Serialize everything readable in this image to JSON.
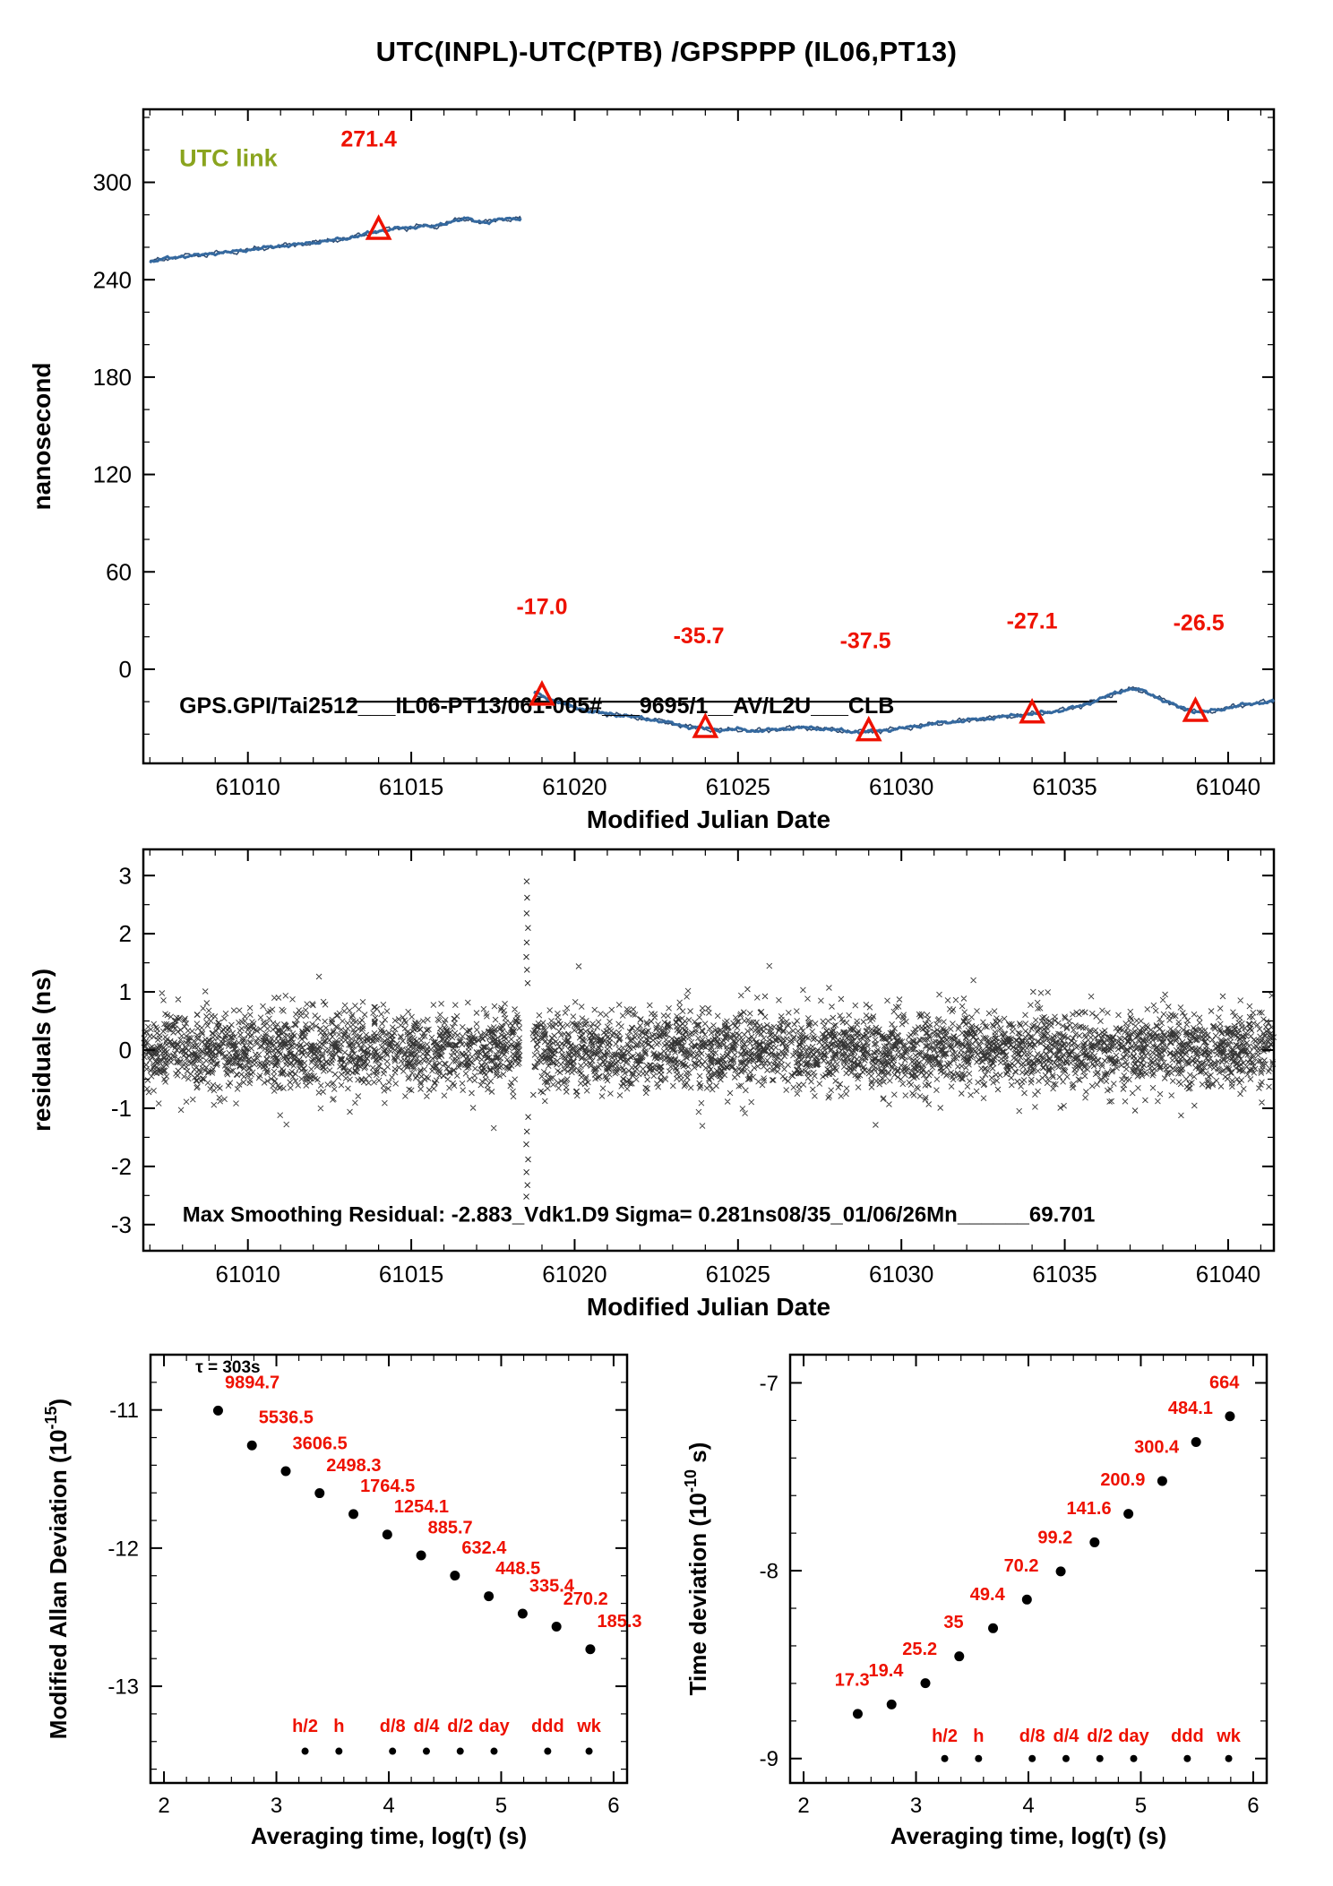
{
  "title": "UTC(INPL)-UTC(PTB)  /GPSPPP  (IL06,PT13)",
  "colors": {
    "trace_blue": "#35699f",
    "trace_blue_dark": "#16355e",
    "accent_red": "#ee1100",
    "utc_link_green": "#8aa41e",
    "ink": "#000000"
  },
  "chart_data": [
    {
      "id": "utc_link_time_series",
      "type": "line",
      "xlabel": "Modified Julian Date",
      "ylabel": "nanosecond",
      "xlim": [
        61006.8,
        61041.4
      ],
      "ylim": [
        -58,
        345
      ],
      "xticks": [
        61010,
        61015,
        61020,
        61025,
        61030,
        61035,
        61040
      ],
      "yticks": [
        0,
        60,
        120,
        180,
        240,
        300
      ],
      "corner_label": "UTC link",
      "corner_label_pos": [
        61007.9,
        310
      ],
      "inline_label": "GPS.GPI/Tai2512___IL06-PT13/061-005#___9695/1__AV/L2U___CLB",
      "inline_label_pos": [
        61007.9,
        -27
      ],
      "baseline_segment": {
        "y": -20,
        "x1": 61013.0,
        "x2": 61036.6
      },
      "series": [
        {
          "name": "pre-step",
          "points": [
            [
              61007,
              251
            ],
            [
              61007.5,
              253
            ],
            [
              61008,
              254.5
            ],
            [
              61008.5,
              255
            ],
            [
              61009,
              256.5
            ],
            [
              61009.5,
              257
            ],
            [
              61010,
              258.5
            ],
            [
              61010.5,
              259.5
            ],
            [
              61011,
              261
            ],
            [
              61011.5,
              261.5
            ],
            [
              61012,
              263
            ],
            [
              61012.5,
              264
            ],
            [
              61013,
              265.5
            ],
            [
              61013.5,
              267.5
            ],
            [
              61014,
              270
            ],
            [
              61014.5,
              271.5
            ],
            [
              61015,
              272
            ],
            [
              61015.3,
              273.5
            ],
            [
              61015.7,
              272.5
            ],
            [
              61016,
              274.5
            ],
            [
              61016.3,
              276.5
            ],
            [
              61016.7,
              277.5
            ],
            [
              61017,
              276
            ],
            [
              61017.3,
              275.5
            ],
            [
              61017.7,
              277
            ],
            [
              61018,
              277.5
            ],
            [
              61018.35,
              278
            ]
          ]
        },
        {
          "name": "post-step",
          "points": [
            [
              61018.75,
              -14
            ],
            [
              61019,
              -16.5
            ],
            [
              61019.3,
              -19
            ],
            [
              61019.7,
              -21.5
            ],
            [
              61020,
              -23.5
            ],
            [
              61020.5,
              -26
            ],
            [
              61021,
              -27.5
            ],
            [
              61021.5,
              -28.5
            ],
            [
              61022,
              -30
            ],
            [
              61022.5,
              -31.5
            ],
            [
              61023,
              -33.5
            ],
            [
              61023.5,
              -35.5
            ],
            [
              61024,
              -36.5
            ],
            [
              61024.5,
              -37.5
            ],
            [
              61025,
              -37
            ],
            [
              61025.5,
              -38
            ],
            [
              61026,
              -37.5
            ],
            [
              61026.5,
              -36.5
            ],
            [
              61027,
              -36
            ],
            [
              61027.5,
              -36.5
            ],
            [
              61028,
              -37.5
            ],
            [
              61028.5,
              -38.5
            ],
            [
              61029,
              -38.5
            ],
            [
              61029.5,
              -37.5
            ],
            [
              61030,
              -36.5
            ],
            [
              61030.5,
              -35
            ],
            [
              61031,
              -33.5
            ],
            [
              61031.5,
              -32.5
            ],
            [
              61032,
              -31.5
            ],
            [
              61032.5,
              -30.5
            ],
            [
              61033,
              -29.5
            ],
            [
              61033.5,
              -28.5
            ],
            [
              61034,
              -27.5
            ],
            [
              61034.5,
              -26.5
            ],
            [
              61035,
              -25
            ],
            [
              61035.5,
              -22.5
            ],
            [
              61036,
              -19
            ],
            [
              61036.5,
              -15
            ],
            [
              61036.8,
              -13
            ],
            [
              61037.1,
              -12
            ],
            [
              61037.4,
              -13.5
            ],
            [
              61037.7,
              -16
            ],
            [
              61038,
              -19
            ],
            [
              61038.4,
              -22.5
            ],
            [
              61038.8,
              -25
            ],
            [
              61039.1,
              -26.5
            ],
            [
              61039.4,
              -26
            ],
            [
              61039.8,
              -24.5
            ],
            [
              61040.2,
              -23
            ],
            [
              61040.6,
              -21.5
            ],
            [
              61041,
              -20.5
            ],
            [
              61041.4,
              -20
            ]
          ]
        }
      ],
      "markers": [
        {
          "x": 61014,
          "y": 270.5,
          "label": "271.4",
          "label_pos": [
            61013.7,
            322
          ]
        },
        {
          "x": 61019,
          "y": -16.5,
          "label": "-17.0",
          "label_pos": [
            61019.0,
            34
          ]
        },
        {
          "x": 61024,
          "y": -36.5,
          "label": "-35.7",
          "label_pos": [
            61023.8,
            16
          ]
        },
        {
          "x": 61029,
          "y": -38.5,
          "label": "-37.5",
          "label_pos": [
            61028.9,
            13
          ]
        },
        {
          "x": 61034,
          "y": -27.5,
          "label": "-27.1",
          "label_pos": [
            61034.0,
            25
          ]
        },
        {
          "x": 61039,
          "y": -26.5,
          "label": "-26.5",
          "label_pos": [
            61039.1,
            24
          ]
        }
      ]
    },
    {
      "id": "residuals",
      "type": "scatter",
      "xlabel": "Modified Julian Date",
      "ylabel": "residuals (ns)",
      "xlim": [
        61006.8,
        61041.4
      ],
      "ylim": [
        -3.45,
        3.45
      ],
      "xticks": [
        61010,
        61015,
        61020,
        61025,
        61030,
        61035,
        61040
      ],
      "yticks": [
        -3,
        -2,
        -1,
        0,
        1,
        2,
        3
      ],
      "note": "Max Smoothing Residual: -2.883_Vdk1.D9  Sigma= 0.281ns08/35_01/06/26Mn______69.701",
      "note_pos": [
        61008.0,
        -2.95
      ],
      "noise": {
        "seed": 20240611,
        "count": 4600,
        "sigma": 0.33,
        "clip": 1.5,
        "gap": [
          61018.32,
          61018.72
        ]
      },
      "outlier_column": {
        "x": 61018.55,
        "values": [
          2.9,
          2.62,
          2.35,
          2.1,
          1.85,
          1.6,
          1.38,
          1.15,
          -1.15,
          -1.4,
          -1.62,
          -1.88,
          -2.1,
          -2.32,
          -2.52
        ]
      }
    },
    {
      "id": "mdev",
      "type": "dots",
      "xlabel": "Averaging time, log(τ) (s)",
      "ylabel": "Modified Allan Deviation (10^{-15})",
      "xlim": [
        1.88,
        6.12
      ],
      "ylim": [
        -13.7,
        -10.6
      ],
      "xticks": [
        2,
        3,
        4,
        5,
        6
      ],
      "yticks": [
        -11,
        -12,
        -13
      ],
      "value_exp": -15,
      "tau_note": "τ = 303s",
      "tau_note_pos": [
        2.28,
        -10.73
      ],
      "label_offset": [
        0.06,
        0.16
      ],
      "label_anchor": "start",
      "points": [
        {
          "logtau": 2.4814,
          "value": 9894.7
        },
        {
          "logtau": 2.7824,
          "value": 5536.5
        },
        {
          "logtau": 3.0835,
          "value": 3606.5
        },
        {
          "logtau": 3.3845,
          "value": 2498.3
        },
        {
          "logtau": 3.6855,
          "value": 1764.5
        },
        {
          "logtau": 3.9866,
          "value": 1254.1
        },
        {
          "logtau": 4.2876,
          "value": 885.7
        },
        {
          "logtau": 4.5886,
          "value": 632.4
        },
        {
          "logtau": 4.8897,
          "value": 448.5
        },
        {
          "logtau": 5.1907,
          "value": 335.4
        },
        {
          "logtau": 5.4917,
          "value": 270.2
        },
        {
          "logtau": 5.7928,
          "value": 185.3
        }
      ],
      "tau_ticks": [
        {
          "label": "h/2",
          "logtau": 3.2553
        },
        {
          "label": "h",
          "logtau": 3.5563
        },
        {
          "label": "d/8",
          "logtau": 4.0334
        },
        {
          "label": "d/4",
          "logtau": 4.3345
        },
        {
          "label": "d/2",
          "logtau": 4.6355
        },
        {
          "label": "day",
          "logtau": 4.9365
        },
        {
          "label": "ddd",
          "logtau": 5.4137
        },
        {
          "label": "wk",
          "logtau": 5.7818
        }
      ],
      "tau_tick_label_y": -13.33,
      "tau_tick_dot_y": -13.47
    },
    {
      "id": "tdev",
      "type": "dots",
      "xlabel": "Averaging time, log(τ) (s)",
      "ylabel": "Time deviation (10^{-10} s)",
      "xlim": [
        1.88,
        6.12
      ],
      "ylim": [
        -9.13,
        -6.85
      ],
      "xticks": [
        2,
        3,
        4,
        5,
        6
      ],
      "yticks": [
        -7,
        -8,
        -9
      ],
      "value_exp": -10,
      "tau_note": "",
      "tau_note_pos": [
        0,
        0
      ],
      "label_offset": [
        -0.05,
        0.15
      ],
      "label_anchor": "middle",
      "points": [
        {
          "logtau": 2.4814,
          "value": 17.3
        },
        {
          "logtau": 2.7824,
          "value": 19.4
        },
        {
          "logtau": 3.0835,
          "value": 25.2
        },
        {
          "logtau": 3.3845,
          "value": 35.0
        },
        {
          "logtau": 3.6855,
          "value": 49.4
        },
        {
          "logtau": 3.9866,
          "value": 70.2
        },
        {
          "logtau": 4.2876,
          "value": 99.2
        },
        {
          "logtau": 4.5886,
          "value": 141.6
        },
        {
          "logtau": 4.8897,
          "value": 200.9
        },
        {
          "logtau": 5.1907,
          "value": 300.4
        },
        {
          "logtau": 5.4917,
          "value": 484.1
        },
        {
          "logtau": 5.7928,
          "value": 664.0
        }
      ],
      "tau_ticks": [
        {
          "label": "h/2",
          "logtau": 3.2553
        },
        {
          "label": "h",
          "logtau": 3.5563
        },
        {
          "label": "d/8",
          "logtau": 4.0334
        },
        {
          "label": "d/4",
          "logtau": 4.3345
        },
        {
          "label": "d/2",
          "logtau": 4.6355
        },
        {
          "label": "day",
          "logtau": 4.9365
        },
        {
          "label": "ddd",
          "logtau": 5.4137
        },
        {
          "label": "wk",
          "logtau": 5.7818
        }
      ],
      "tau_tick_label_y": -8.91,
      "tau_tick_dot_y": -9.0
    }
  ]
}
